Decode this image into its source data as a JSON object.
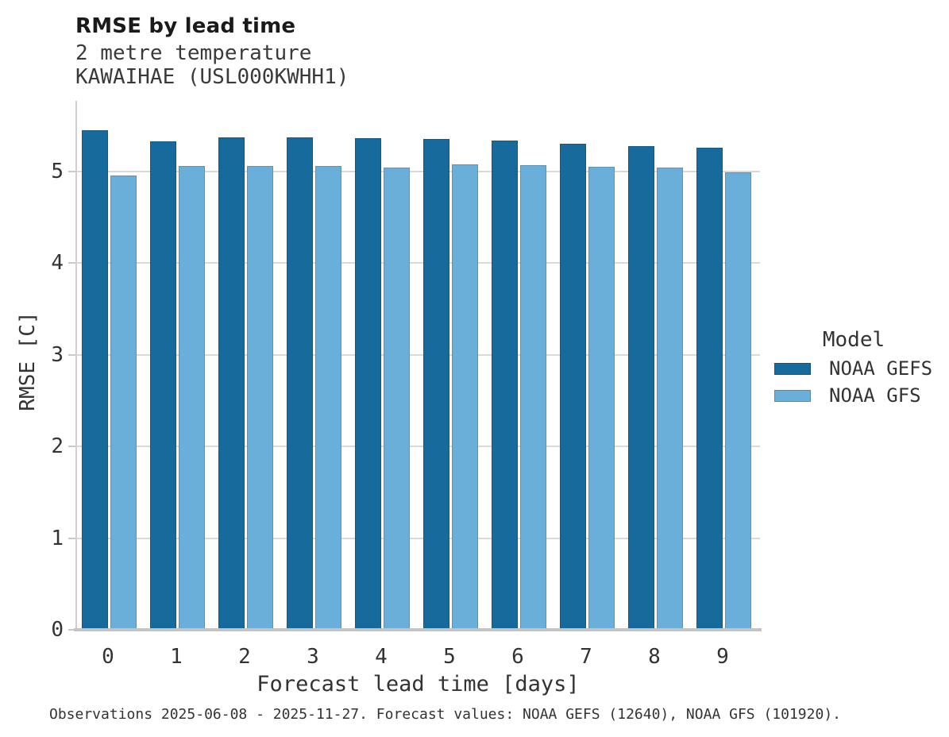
{
  "header": {
    "title": "RMSE by lead time",
    "subtitle_line1": "2 metre temperature",
    "subtitle_line2": "KAWAIHAE (USL000KWHH1)"
  },
  "chart_data": {
    "type": "bar",
    "title": "RMSE by lead time",
    "subtitle": "2 metre temperature",
    "station": "KAWAIHAE (USL000KWHH1)",
    "xlabel": "Forecast lead time [days]",
    "ylabel": "RMSE [C]",
    "categories": [
      "0",
      "1",
      "2",
      "3",
      "4",
      "5",
      "6",
      "7",
      "8",
      "9"
    ],
    "series": [
      {
        "name": "NOAA GEFS",
        "color": "#166a9c",
        "values": [
          5.45,
          5.33,
          5.37,
          5.37,
          5.36,
          5.35,
          5.34,
          5.3,
          5.28,
          5.26
        ]
      },
      {
        "name": "NOAA GFS",
        "color": "#69afda",
        "values": [
          4.96,
          5.06,
          5.06,
          5.06,
          5.04,
          5.08,
          5.07,
          5.05,
          5.04,
          4.99
        ]
      }
    ],
    "ylim": [
      0,
      5.77
    ],
    "yticks": [
      0,
      1,
      2,
      3,
      4,
      5
    ],
    "grid": true,
    "legend_title": "Model",
    "legend_position": "right"
  },
  "footer": {
    "text": "Observations 2025-06-08 - 2025-11-27. Forecast values: NOAA GEFS (12640), NOAA GFS (101920)."
  },
  "colors": {
    "gefs_dark_blue": "#166a9c",
    "gfs_light_blue": "#69afda",
    "gridline": "#d9d9d9",
    "axis_line": "#c3c3c3",
    "text": "#333333",
    "title_text": "#1a1a1a"
  }
}
